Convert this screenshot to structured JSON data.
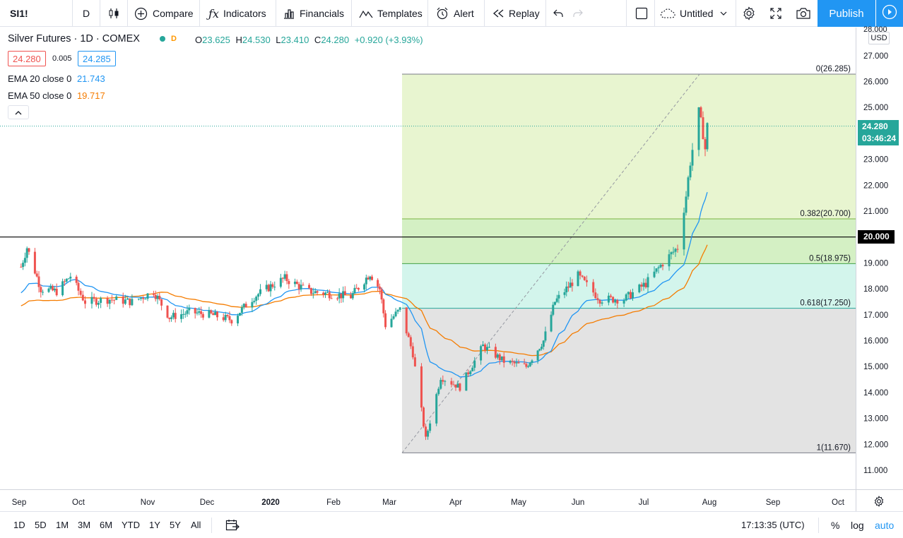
{
  "toolbar": {
    "symbol": "SI1!",
    "interval": "D",
    "compare": "Compare",
    "indicators": "Indicators",
    "financials": "Financials",
    "templates": "Templates",
    "alert": "Alert",
    "replay": "Replay",
    "layout_name": "Untitled",
    "publish": "Publish"
  },
  "legend": {
    "title": "Silver Futures · 1D · COMEX",
    "badge": "D",
    "o_label": "O",
    "o": "23.625",
    "h_label": "H",
    "h": "24.530",
    "l_label": "L",
    "l": "23.410",
    "c_label": "C",
    "c": "24.280",
    "change": "+0.920 (+3.93%)",
    "bid": "24.280",
    "spread": "0.005",
    "ask": "24.285",
    "ema20_label": "EMA 20 close 0",
    "ema20_value": "21.743",
    "ema50_label": "EMA 50 close 0",
    "ema50_value": "19.717"
  },
  "price_axis": {
    "currency": "USD",
    "top_partial": "28.000",
    "last_price": "24.280",
    "countdown": "03:46:24",
    "horizontal_line": "20.000"
  },
  "fib": {
    "levels": [
      {
        "label": "0(26.285)",
        "ratio": 0,
        "price": 26.285
      },
      {
        "label": "0.382(20.700)",
        "ratio": 0.382,
        "price": 20.7
      },
      {
        "label": "0.5(18.975)",
        "ratio": 0.5,
        "price": 18.975
      },
      {
        "label": "0.618(17.250)",
        "ratio": 0.618,
        "price": 17.25
      },
      {
        "label": "1(11.670)",
        "ratio": 1,
        "price": 11.67
      }
    ]
  },
  "colors": {
    "up": "#26a69a",
    "down": "#ef5350",
    "ema20": "#2196f3",
    "ema50": "#f57c00",
    "fib_top_fill": "#e8f5d0",
    "fib_mid_fill": "#d4f0c4",
    "fib_teal_fill": "#d3f5ec",
    "fib_bottom_fill": "#e3e3e3",
    "accent": "#2196f3"
  },
  "chart_data": {
    "type": "candlestick",
    "symbol": "Silver Futures",
    "exchange": "COMEX",
    "timeframe": "1D",
    "y_range": [
      10.5,
      28
    ],
    "x_ticks": [
      "Sep",
      "Oct",
      "Nov",
      "Dec",
      "2020",
      "Feb",
      "Mar",
      "Apr",
      "May",
      "Jun",
      "Jul",
      "Aug",
      "Sep",
      "Oct"
    ],
    "y_ticks": [
      11,
      12,
      13,
      14,
      15,
      16,
      17,
      18,
      19,
      20,
      21,
      22,
      23,
      24,
      25,
      26,
      27
    ],
    "close_series": [
      {
        "date": "2019-09-01",
        "close": 18.6
      },
      {
        "date": "2019-09-05",
        "close": 19.6
      },
      {
        "date": "2019-09-12",
        "close": 18.0
      },
      {
        "date": "2019-09-20",
        "close": 17.9
      },
      {
        "date": "2019-09-27",
        "close": 18.5
      },
      {
        "date": "2019-10-04",
        "close": 17.5
      },
      {
        "date": "2019-10-15",
        "close": 17.6
      },
      {
        "date": "2019-10-25",
        "close": 17.5
      },
      {
        "date": "2019-11-04",
        "close": 17.9
      },
      {
        "date": "2019-11-12",
        "close": 16.9
      },
      {
        "date": "2019-11-22",
        "close": 17.1
      },
      {
        "date": "2019-12-03",
        "close": 17.0
      },
      {
        "date": "2019-12-13",
        "close": 16.8
      },
      {
        "date": "2019-12-24",
        "close": 17.7
      },
      {
        "date": "2020-01-03",
        "close": 18.2
      },
      {
        "date": "2020-01-08",
        "close": 18.4
      },
      {
        "date": "2020-01-20",
        "close": 17.9
      },
      {
        "date": "2020-01-31",
        "close": 17.8
      },
      {
        "date": "2020-02-10",
        "close": 17.7
      },
      {
        "date": "2020-02-20",
        "close": 18.6
      },
      {
        "date": "2020-02-25",
        "close": 18.0
      },
      {
        "date": "2020-02-28",
        "close": 16.6
      },
      {
        "date": "2020-03-06",
        "close": 17.2
      },
      {
        "date": "2020-03-12",
        "close": 15.5
      },
      {
        "date": "2020-03-18",
        "close": 12.2
      },
      {
        "date": "2020-03-25",
        "close": 14.6
      },
      {
        "date": "2020-04-03",
        "close": 14.2
      },
      {
        "date": "2020-04-14",
        "close": 15.8
      },
      {
        "date": "2020-04-24",
        "close": 15.2
      },
      {
        "date": "2020-05-05",
        "close": 15.0
      },
      {
        "date": "2020-05-14",
        "close": 16.0
      },
      {
        "date": "2020-05-20",
        "close": 17.5
      },
      {
        "date": "2020-06-01",
        "close": 18.5
      },
      {
        "date": "2020-06-11",
        "close": 17.6
      },
      {
        "date": "2020-06-22",
        "close": 17.6
      },
      {
        "date": "2020-07-02",
        "close": 18.2
      },
      {
        "date": "2020-07-10",
        "close": 19.0
      },
      {
        "date": "2020-07-17",
        "close": 19.6
      },
      {
        "date": "2020-07-21",
        "close": 21.6
      },
      {
        "date": "2020-07-23",
        "close": 22.9
      },
      {
        "date": "2020-07-27",
        "close": 24.8
      },
      {
        "date": "2020-07-29",
        "close": 24.0
      },
      {
        "date": "2020-07-30",
        "close": 23.4
      },
      {
        "date": "2020-07-31",
        "close": 24.28
      }
    ]
  },
  "bottombar": {
    "ranges": [
      "1D",
      "5D",
      "1M",
      "3M",
      "6M",
      "YTD",
      "1Y",
      "5Y",
      "All"
    ],
    "clock": "17:13:35 (UTC)",
    "percent": "%",
    "log": "log",
    "auto": "auto"
  }
}
